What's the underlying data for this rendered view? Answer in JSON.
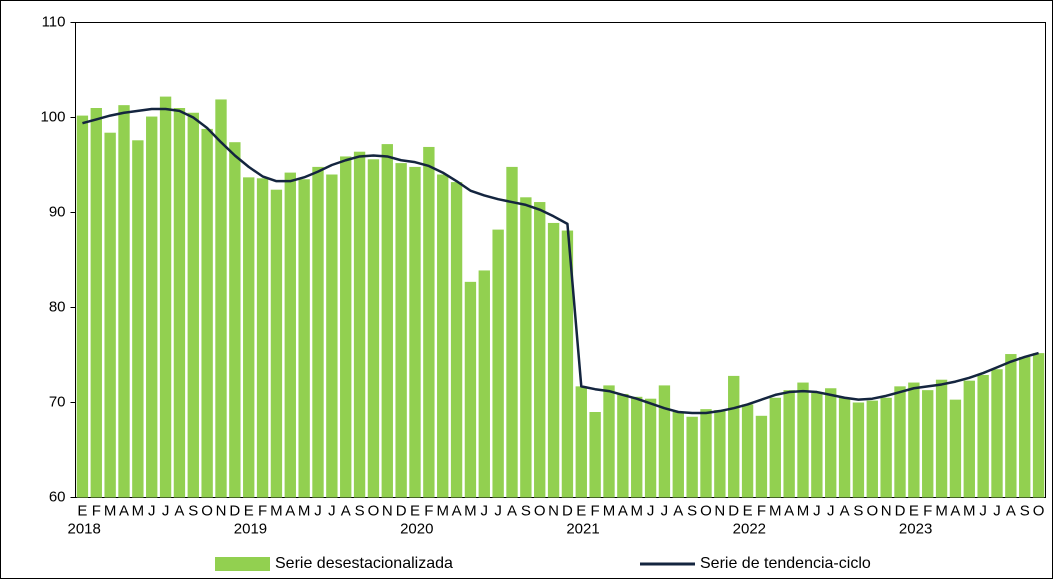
{
  "chart_data": {
    "type": "bar-line",
    "categories": [
      "E",
      "F",
      "M",
      "A",
      "M",
      "J",
      "J",
      "A",
      "S",
      "O",
      "N",
      "D",
      "E",
      "F",
      "M",
      "A",
      "M",
      "J",
      "J",
      "A",
      "S",
      "O",
      "N",
      "D",
      "E",
      "F",
      "M",
      "A",
      "M",
      "J",
      "J",
      "A",
      "S",
      "O",
      "N",
      "D",
      "E",
      "F",
      "M",
      "A",
      "M",
      "J",
      "J",
      "A",
      "S",
      "O",
      "N",
      "D",
      "E",
      "F",
      "M",
      "A",
      "M",
      "J",
      "J",
      "A",
      "S",
      "O",
      "N",
      "D",
      "E",
      "F",
      "M",
      "A",
      "M",
      "J",
      "J",
      "A",
      "S",
      "O"
    ],
    "years": [
      "2018",
      "2019",
      "2020",
      "2021",
      "2022",
      "2023"
    ],
    "ylim": [
      60,
      110
    ],
    "yticks": [
      60,
      70,
      80,
      90,
      100,
      110
    ],
    "grid": false,
    "series": [
      {
        "name": "Serie desestacionalizada",
        "type": "bar",
        "color": "#92d050",
        "values": [
          100.2,
          101.0,
          98.4,
          101.3,
          97.6,
          100.1,
          102.2,
          101.0,
          100.5,
          98.8,
          101.9,
          97.4,
          93.7,
          93.6,
          92.4,
          94.2,
          93.5,
          94.8,
          94.0,
          95.9,
          96.4,
          95.6,
          97.2,
          95.2,
          94.8,
          96.9,
          94.0,
          93.2,
          82.7,
          83.9,
          88.2,
          94.8,
          91.6,
          91.1,
          88.9,
          88.1,
          71.7,
          69.0,
          71.8,
          70.9,
          70.6,
          70.4,
          71.8,
          69.0,
          68.5,
          69.3,
          69.2,
          72.8,
          69.8,
          68.6,
          70.5,
          71.3,
          72.1,
          71.0,
          71.5,
          70.5,
          70.0,
          70.2,
          70.5,
          71.7,
          72.1,
          71.3,
          72.4,
          70.3,
          72.3,
          72.9,
          73.5,
          75.1,
          74.8,
          75.2
        ]
      },
      {
        "name": "Serie de tendencia-ciclo",
        "type": "line",
        "color": "#14253f",
        "values": [
          99.4,
          99.8,
          100.2,
          100.5,
          100.7,
          100.9,
          100.9,
          100.7,
          100.0,
          98.9,
          97.4,
          96.0,
          94.8,
          93.8,
          93.3,
          93.3,
          93.7,
          94.3,
          95.0,
          95.5,
          95.9,
          96.0,
          95.9,
          95.5,
          95.3,
          94.9,
          94.2,
          93.3,
          92.3,
          91.8,
          91.4,
          91.1,
          90.8,
          90.3,
          89.6,
          88.8,
          71.7,
          71.4,
          71.2,
          70.8,
          70.4,
          69.9,
          69.4,
          69.0,
          68.9,
          68.9,
          69.1,
          69.4,
          69.8,
          70.3,
          70.8,
          71.1,
          71.2,
          71.1,
          70.8,
          70.5,
          70.3,
          70.4,
          70.7,
          71.1,
          71.5,
          71.7,
          71.9,
          72.2,
          72.6,
          73.1,
          73.7,
          74.3,
          74.8,
          75.2
        ]
      }
    ],
    "legend": "bottom"
  }
}
